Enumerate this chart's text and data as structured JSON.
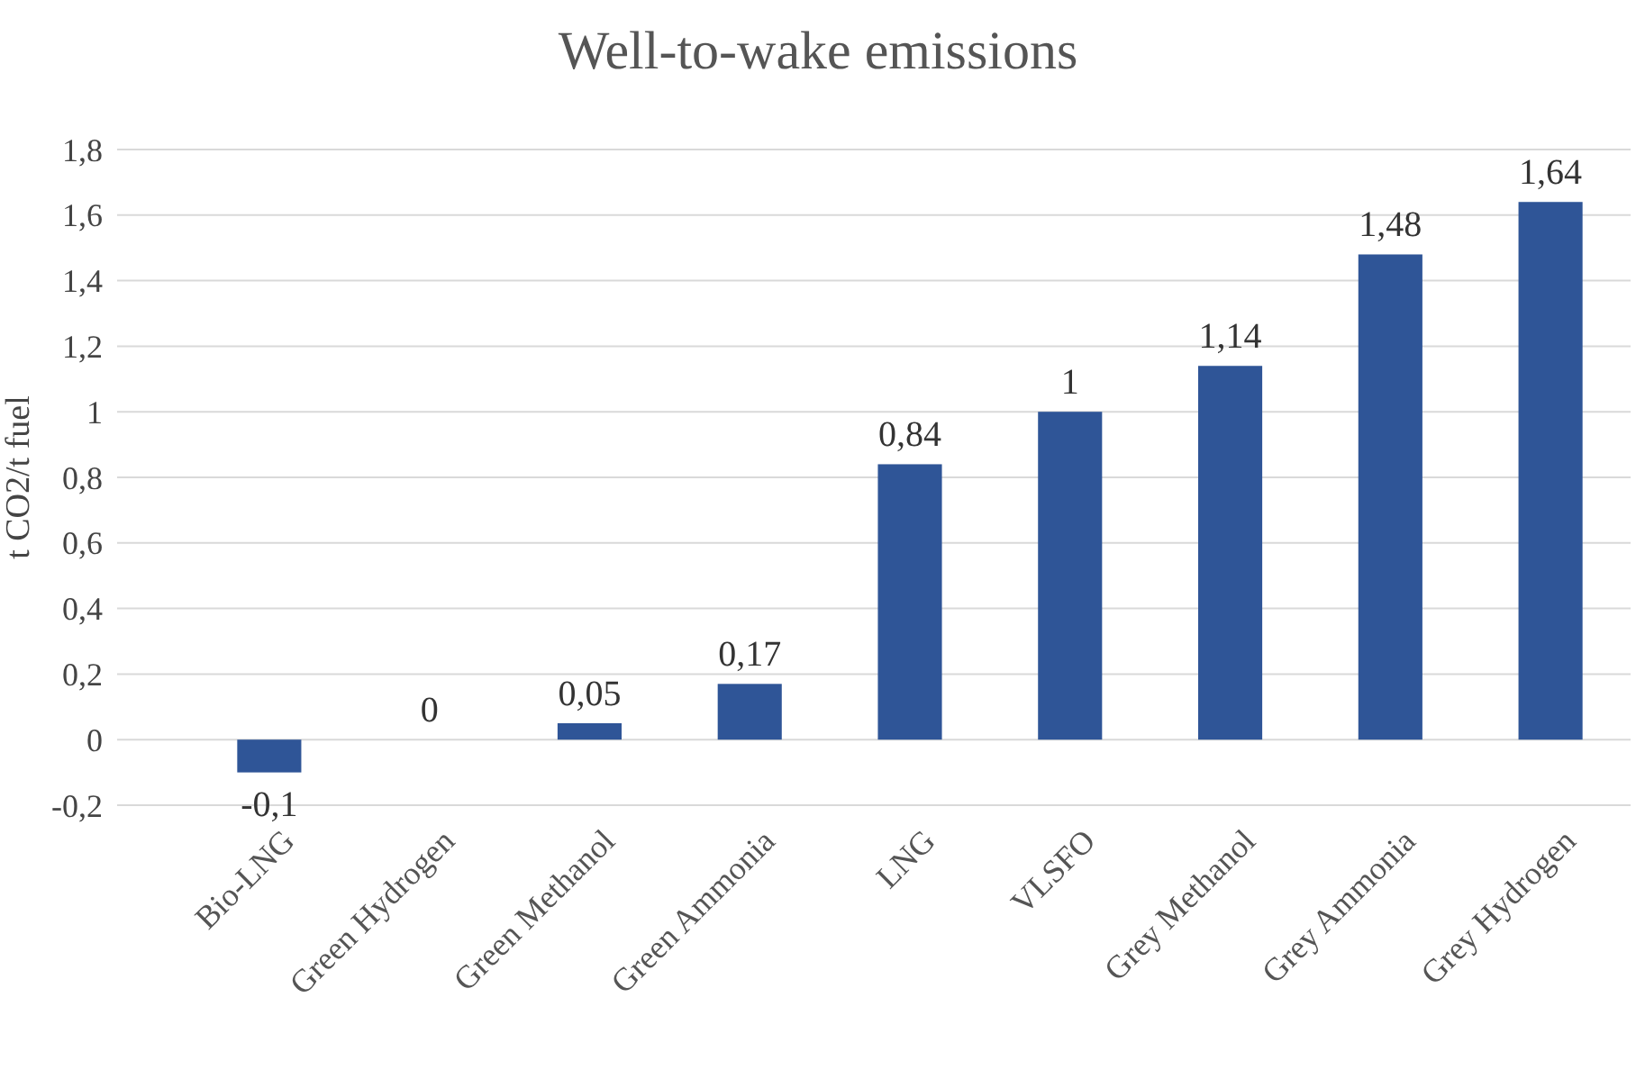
{
  "chart_data": {
    "type": "bar",
    "title": "Well-to-wake emissions",
    "ylabel": "t CO2/t fuel",
    "categories": [
      "Bio-LNG",
      "Green Hydrogen",
      "Green Methanol",
      "Green Ammonia",
      "LNG",
      "VLSFO",
      "Grey Methanol",
      "Grey Ammonia",
      "Grey Hydrogen"
    ],
    "values": [
      -0.1,
      0,
      0.05,
      0.17,
      0.84,
      1,
      1.14,
      1.48,
      1.64
    ],
    "value_labels": [
      "-0,1",
      "0",
      "0,05",
      "0,17",
      "0,84",
      "1",
      "1,14",
      "1,48",
      "1,64"
    ],
    "color": "#2f5597",
    "ylim": [
      -0.2,
      1.8
    ],
    "yticks": [
      {
        "value": -0.2,
        "label": "-0,2"
      },
      0,
      {
        "value": 0.2,
        "label": "0,2"
      },
      {
        "value": 0.4,
        "label": "0,4"
      },
      {
        "value": 0.6,
        "label": "0,6"
      },
      {
        "value": 0.8,
        "label": "0,8"
      },
      1,
      {
        "value": 1.2,
        "label": "1,2"
      },
      {
        "value": 1.4,
        "label": "1,4"
      },
      {
        "value": 1.6,
        "label": "1,6"
      },
      {
        "value": 1.8,
        "label": "1,8"
      }
    ],
    "grid": "y"
  }
}
